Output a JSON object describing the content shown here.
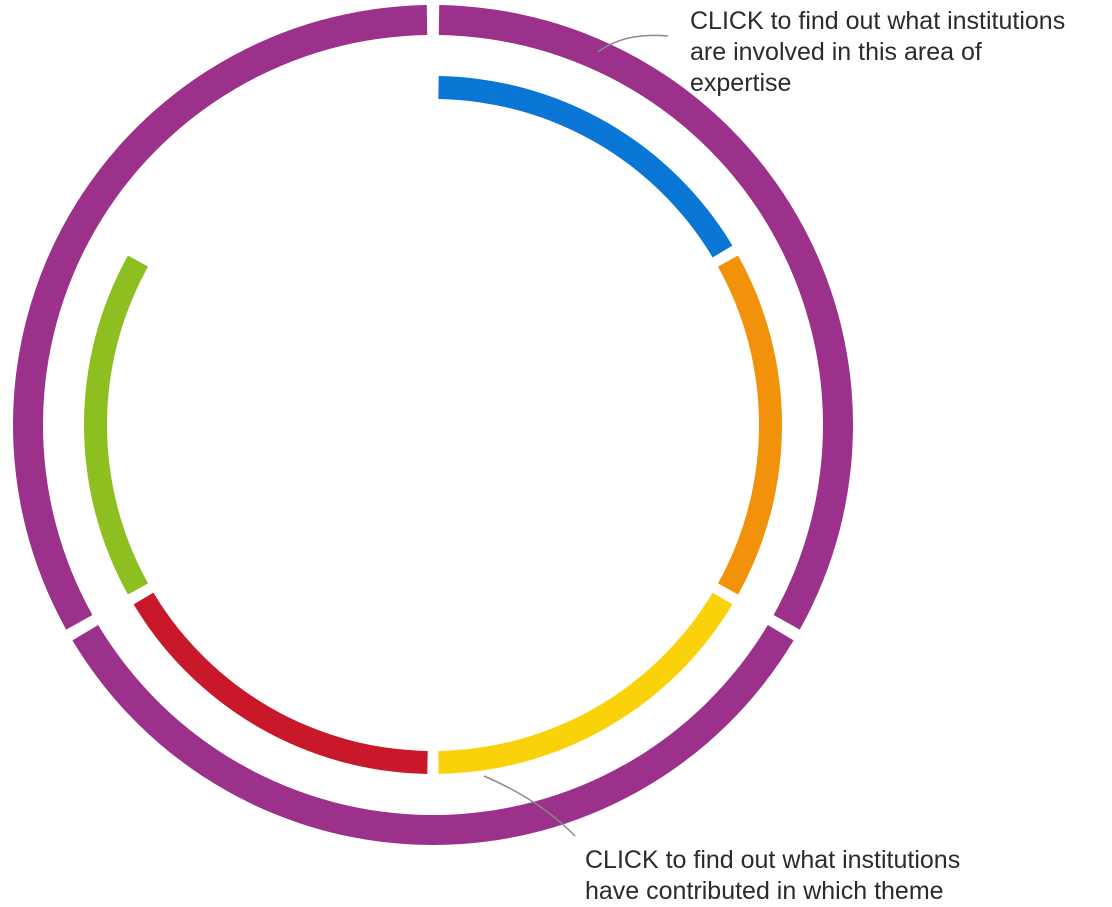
{
  "callouts": {
    "outer": {
      "lines": [
        "CLICK to find out what institutions",
        "are involved in this area of",
        "expertise"
      ]
    },
    "inner": {
      "lines": [
        "CLICK to find out what institutions",
        "have contributed in which theme"
      ]
    }
  },
  "outer_ring": {
    "segments": [
      {
        "id": "outer-right",
        "color": "#9b318a",
        "span_deg": 120
      },
      {
        "id": "outer-bottom",
        "color": "#9b318a",
        "span_deg": 120
      },
      {
        "id": "outer-left",
        "color": "#9b318a",
        "span_deg": 120
      }
    ]
  },
  "inner_ring": {
    "segments": [
      {
        "id": "inner-blue",
        "color": "#0a76d6",
        "span_deg": 60
      },
      {
        "id": "inner-orange",
        "color": "#f2920a",
        "span_deg": 60
      },
      {
        "id": "inner-yellow",
        "color": "#fad20a",
        "span_deg": 60
      },
      {
        "id": "inner-red",
        "color": "#c8182a",
        "span_deg": 60
      },
      {
        "id": "inner-green",
        "color": "#8cbf1f",
        "span_deg": 60
      }
    ]
  }
}
